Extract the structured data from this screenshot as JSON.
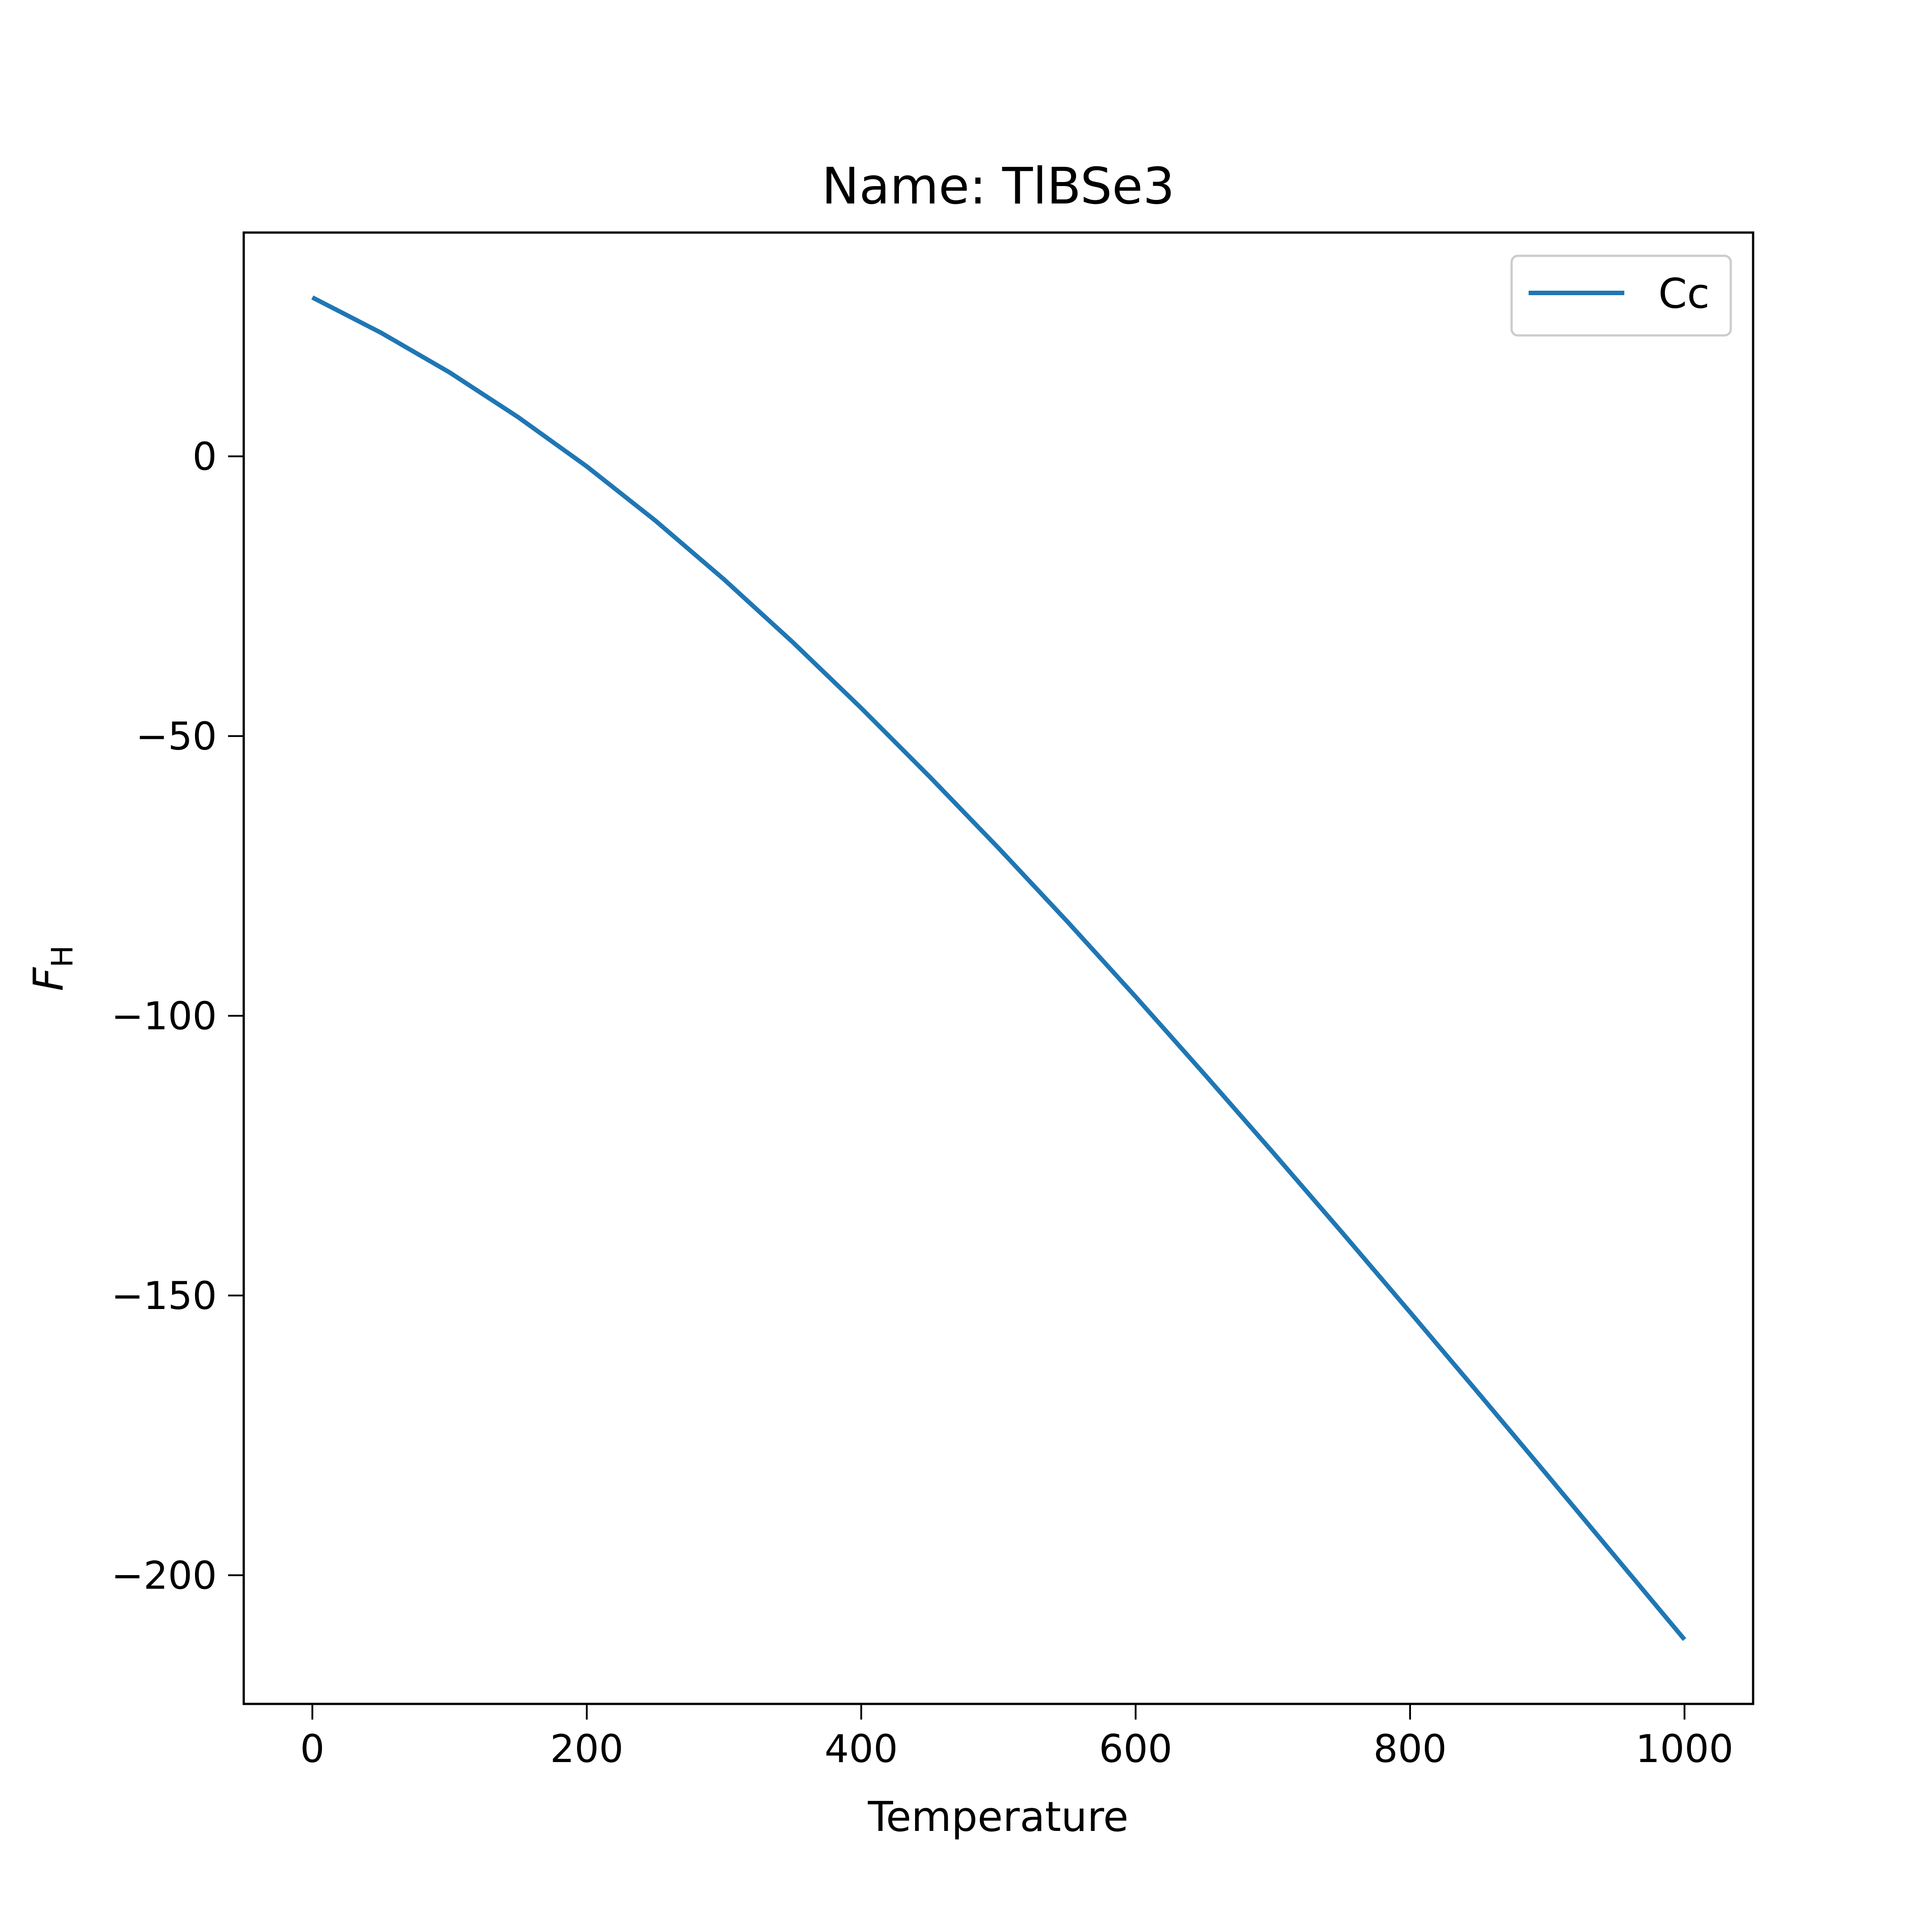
{
  "chart_data": {
    "type": "line",
    "title": "Name: TlBSe3",
    "xlabel": "Temperature",
    "ylabel_main": "F",
    "ylabel_sub": "H",
    "xlim": [
      -50,
      1050
    ],
    "ylim": [
      -223,
      40
    ],
    "xticks": [
      0,
      200,
      400,
      600,
      800,
      1000
    ],
    "yticks": [
      0,
      -50,
      -100,
      -150,
      -200
    ],
    "tick_labels_x": [
      "0",
      "200",
      "400",
      "600",
      "800",
      "1000"
    ],
    "tick_labels_y": [
      "0",
      "−50",
      "−100",
      "−150",
      "−200"
    ],
    "grid": false,
    "legend_position": "top-right",
    "series": [
      {
        "name": "Cc",
        "color": "#1f77b4",
        "x": [
          0,
          50,
          100,
          150,
          200,
          250,
          300,
          350,
          400,
          450,
          500,
          550,
          600,
          650,
          700,
          750,
          800,
          850,
          900,
          950,
          1000
        ],
        "y": [
          28.4,
          22.1,
          15.0,
          7.0,
          -1.8,
          -11.5,
          -22.0,
          -33.2,
          -45.0,
          -57.3,
          -70.0,
          -83.1,
          -96.6,
          -110.4,
          -124.4,
          -138.6,
          -153.0,
          -167.5,
          -182.1,
          -196.8,
          -211.5
        ]
      }
    ]
  }
}
